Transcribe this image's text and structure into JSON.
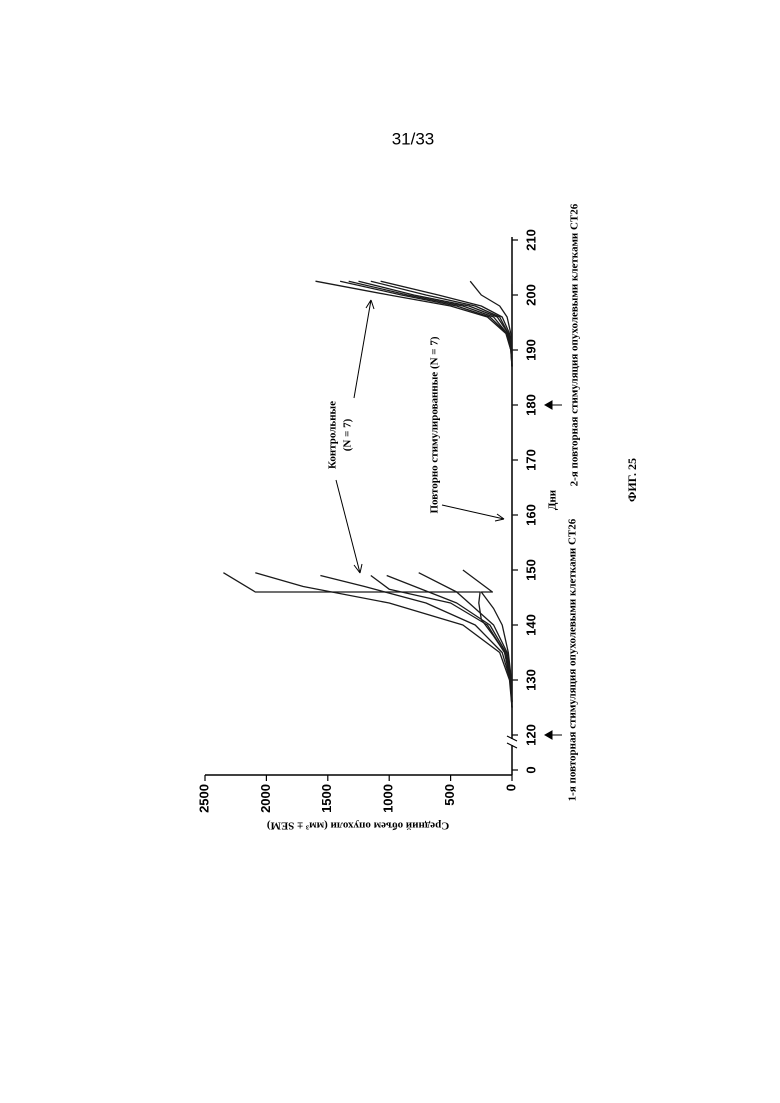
{
  "page_number": "31/33",
  "caption": "ФИГ. 25",
  "chart_data": {
    "type": "line",
    "xlabel": "Дни",
    "ylabel": "Средний объем опухоли (мм³ ± SEM)",
    "xlim": [
      0,
      210
    ],
    "ylim": [
      0,
      2500
    ],
    "xticks": [
      0,
      120,
      130,
      140,
      150,
      160,
      170,
      180,
      190,
      200,
      210
    ],
    "yticks": [
      0,
      500,
      1000,
      1500,
      2000,
      2500
    ],
    "axis_break": true,
    "color": "#1a1a1a",
    "series": [
      {
        "x": [
          125,
          130,
          135,
          138,
          141,
          144,
          146,
          146,
          149.5
        ],
        "values": [
          0,
          15,
          60,
          150,
          250,
          270,
          260,
          2090,
          2350
        ]
      },
      {
        "x": [
          125,
          130,
          135,
          140,
          144,
          147,
          149.5
        ],
        "values": [
          0,
          20,
          100,
          400,
          1000,
          1700,
          2090
        ]
      },
      {
        "x": [
          125,
          130,
          135,
          140,
          144,
          147,
          149
        ],
        "values": [
          0,
          15,
          80,
          300,
          700,
          1200,
          1560
        ]
      },
      {
        "x": [
          125,
          130,
          135,
          140,
          144,
          146.5,
          149
        ],
        "values": [
          0,
          10,
          60,
          200,
          500,
          1000,
          1150
        ]
      },
      {
        "x": [
          126,
          130,
          135,
          140,
          144,
          149
        ],
        "values": [
          0,
          10,
          50,
          180,
          450,
          1020
        ]
      },
      {
        "x": [
          126,
          130,
          135,
          140,
          143,
          146,
          149.5
        ],
        "values": [
          0,
          5,
          40,
          150,
          300,
          450,
          760
        ]
      },
      {
        "x": [
          126,
          130,
          135,
          140,
          143,
          146,
          146,
          150
        ],
        "values": [
          0,
          5,
          30,
          80,
          150,
          250,
          160,
          400
        ]
      },
      {
        "x": [
          187,
          190,
          193,
          196,
          198,
          200,
          202.5
        ],
        "values": [
          0,
          10,
          50,
          200,
          500,
          1000,
          1600
        ]
      },
      {
        "x": [
          187,
          190,
          193,
          196,
          198,
          200,
          202.5
        ],
        "values": [
          0,
          10,
          40,
          180,
          450,
          900,
          1400
        ]
      },
      {
        "x": [
          187,
          190,
          193,
          196,
          198,
          200,
          202.5
        ],
        "values": [
          0,
          5,
          40,
          150,
          400,
          850,
          1330
        ]
      },
      {
        "x": [
          187,
          190,
          193,
          196,
          198,
          200,
          202.5
        ],
        "values": [
          0,
          5,
          30,
          120,
          350,
          800,
          1250
        ]
      },
      {
        "x": [
          187,
          190,
          193,
          196,
          198,
          200,
          202.5
        ],
        "values": [
          0,
          5,
          30,
          100,
          300,
          700,
          1150
        ]
      },
      {
        "x": [
          187,
          190,
          193,
          196,
          198,
          200,
          202.5
        ],
        "values": [
          0,
          5,
          20,
          80,
          250,
          600,
          1070
        ]
      },
      {
        "x": [
          187,
          190,
          193,
          196,
          198,
          200,
          202.5
        ],
        "values": [
          0,
          0,
          10,
          40,
          100,
          250,
          340
        ]
      },
      {
        "x": [
          121,
          202
        ],
        "values": [
          0,
          0
        ]
      }
    ],
    "annotations": [
      "Контрольные",
      "(N = 7)",
      "Повторно стимулированные (N = 7)",
      "1-я повторная стимуляция опухолевыми клетками CT26",
      "2-я повторная стимуляция опухолевыми клетками CT26"
    ]
  }
}
